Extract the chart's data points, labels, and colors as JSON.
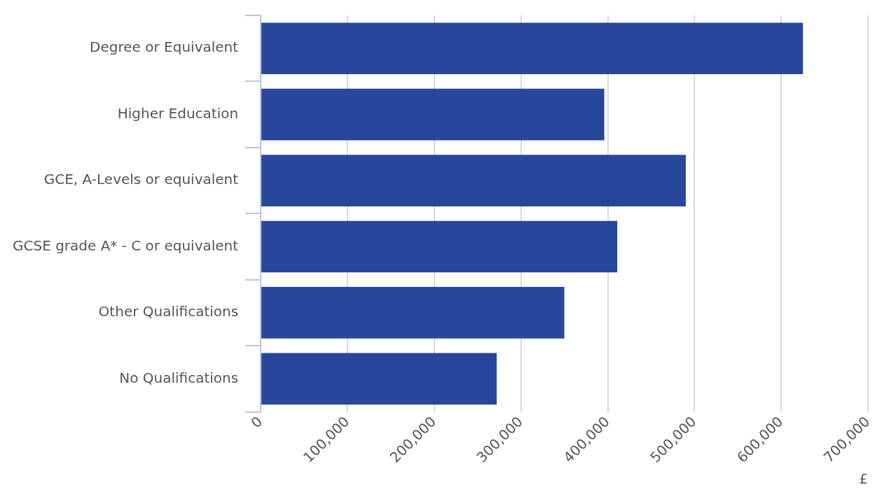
{
  "chart_data": {
    "type": "bar",
    "orientation": "horizontal",
    "categories": [
      "Degree or Equivalent",
      "Higher Education",
      "GCE, A-Levels or equivalent",
      "GCSE grade A* - C or equivalent",
      "Other Qualifications",
      "No Qualifications"
    ],
    "series": [
      {
        "color": "#27479a",
        "values": [
          625000,
          396000,
          490000,
          411000,
          350000,
          272000
        ]
      }
    ],
    "xlim": [
      0,
      700000
    ],
    "xticks": [
      {
        "value": 0,
        "label": "0"
      },
      {
        "value": 100000,
        "label": "100,000"
      },
      {
        "value": 200000,
        "label": "200,000"
      },
      {
        "value": 300000,
        "label": "300,000"
      },
      {
        "value": 400000,
        "label": "400,000"
      },
      {
        "value": 500000,
        "label": "500,000"
      },
      {
        "value": 600000,
        "label": "600,000"
      },
      {
        "value": 700000,
        "label": "700,000"
      }
    ],
    "xlabel": "£",
    "grid": "x",
    "legend": false
  }
}
